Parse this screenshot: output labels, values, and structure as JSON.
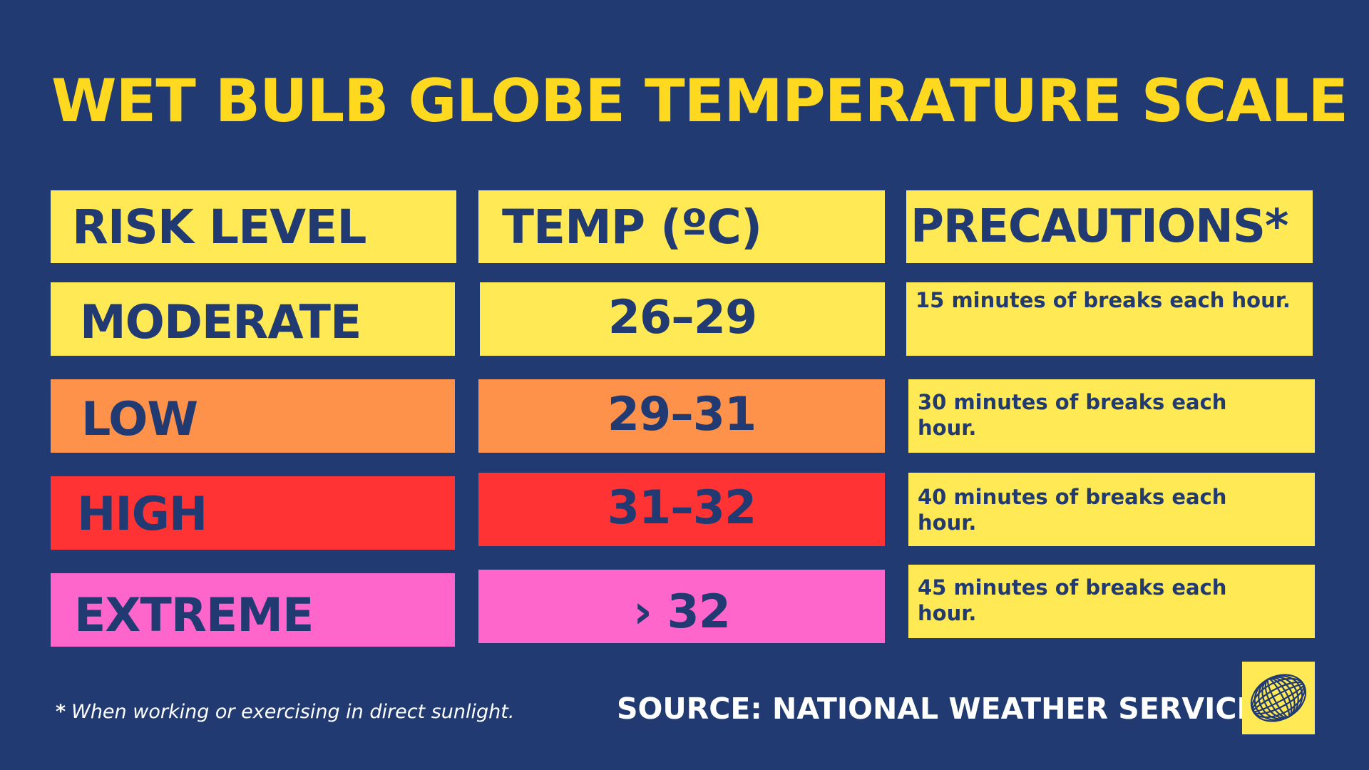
{
  "title": "WET BULB GLOBE TEMPERATURE SCALE",
  "headers": {
    "risk_level": "RISK LEVEL",
    "temp": "TEMP (ºC)",
    "precautions": "PRECAUTIONS*"
  },
  "rows": [
    {
      "level": "MODERATE",
      "temp": "26–29",
      "precaution": "15 minutes of breaks each hour.",
      "color": "#ffe955"
    },
    {
      "level": "LOW",
      "temp": "29–31",
      "precaution": "30 minutes of breaks each hour.",
      "color": "#ff924a"
    },
    {
      "level": "HIGH",
      "temp": "31–32",
      "precaution": "40 minutes of breaks each hour.",
      "color": "#ff3333"
    },
    {
      "level": "EXTREME",
      "temp": "› 32",
      "precaution": "45 minutes of breaks each hour.",
      "color": "#ff66cc"
    }
  ],
  "footnote": {
    "marker": "*",
    "text": "When working or exercising in direct sunlight."
  },
  "source": "SOURCE: NATIONAL WEATHER SERVICE",
  "logo_icon": "globe-logo-icon",
  "colors": {
    "background": "#213b72",
    "title": "#ffd91f",
    "header_fill": "#ffe955",
    "text_dark": "#213b72"
  }
}
